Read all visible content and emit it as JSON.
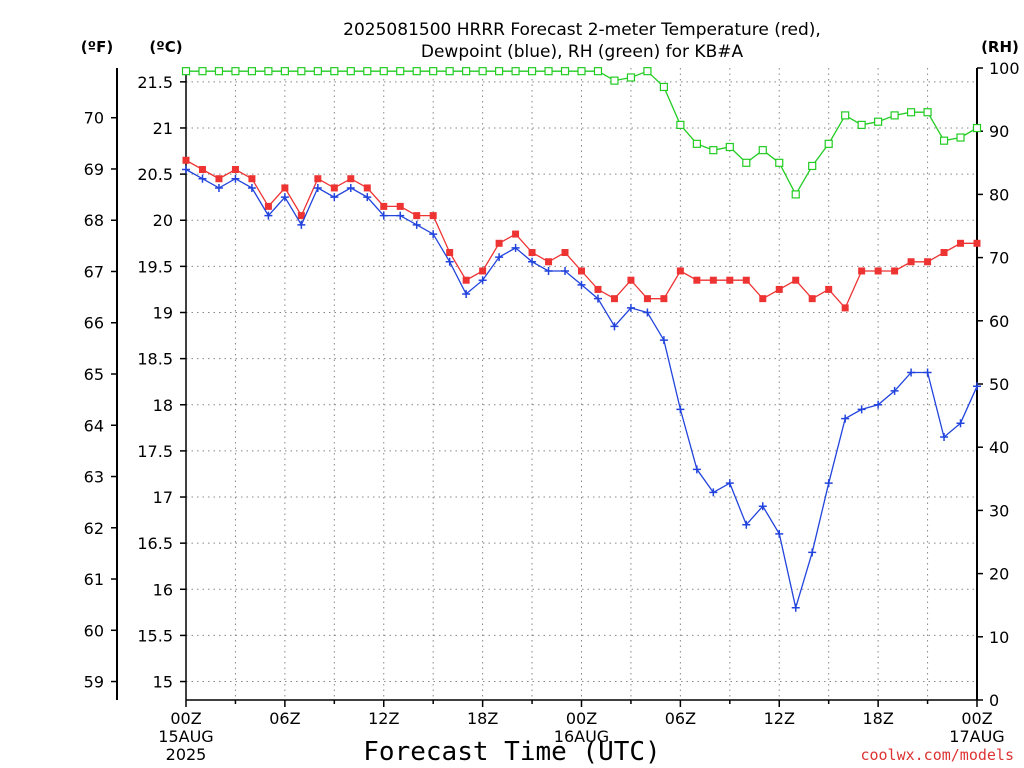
{
  "chart_data": {
    "type": "line",
    "title_line1": "2025081500 HRRR Forecast 2-meter Temperature (red),",
    "title_line2": "Dewpoint (blue), RH (green) for KB#A",
    "xlabel": "Forecast Time (UTC)",
    "credit": "coolwx.com/models",
    "unit_f": "(ºF)",
    "unit_c": "(ºC)",
    "unit_rh": "(RH)",
    "x_unit": "forecast hour from 2025-08-15 00Z",
    "xlim": [
      0,
      48
    ],
    "ylim_c": [
      14.8,
      21.65
    ],
    "ylim_rh": [
      0,
      100
    ],
    "grid": true,
    "x_ticks": [
      {
        "hour": 0,
        "label": "00Z",
        "sub1": "15AUG",
        "sub2": "2025"
      },
      {
        "hour": 6,
        "label": "06Z",
        "sub1": "",
        "sub2": ""
      },
      {
        "hour": 12,
        "label": "12Z",
        "sub1": "",
        "sub2": ""
      },
      {
        "hour": 18,
        "label": "18Z",
        "sub1": "",
        "sub2": ""
      },
      {
        "hour": 24,
        "label": "00Z",
        "sub1": "16AUG",
        "sub2": ""
      },
      {
        "hour": 30,
        "label": "06Z",
        "sub1": "",
        "sub2": ""
      },
      {
        "hour": 36,
        "label": "12Z",
        "sub1": "",
        "sub2": ""
      },
      {
        "hour": 42,
        "label": "18Z",
        "sub1": "",
        "sub2": ""
      },
      {
        "hour": 48,
        "label": "00Z",
        "sub1": "17AUG",
        "sub2": ""
      }
    ],
    "y_ticks_c": [
      "15",
      "15.5",
      "16",
      "16.5",
      "17",
      "17.5",
      "18",
      "18.5",
      "19",
      "19.5",
      "20",
      "20.5",
      "21",
      "21.5"
    ],
    "y_ticks_f": [
      "59",
      "60",
      "61",
      "62",
      "63",
      "64",
      "65",
      "66",
      "67",
      "68",
      "69",
      "70"
    ],
    "y_ticks_rh": [
      "0",
      "10",
      "20",
      "30",
      "40",
      "50",
      "60",
      "70",
      "80",
      "90",
      "100"
    ],
    "colors": {
      "temperature": "#ee3333",
      "dewpoint": "#2244dd",
      "rh": "#22cc22",
      "grid": "#888888"
    },
    "series": [
      {
        "key": "temperature",
        "axis": "c",
        "marker": "filled-square",
        "values": [
          20.65,
          20.55,
          20.45,
          20.55,
          20.45,
          20.15,
          20.35,
          20.05,
          20.45,
          20.35,
          20.45,
          20.35,
          20.15,
          20.15,
          20.05,
          20.05,
          19.65,
          19.35,
          19.45,
          19.75,
          19.85,
          19.65,
          19.55,
          19.65,
          19.45,
          19.25,
          19.15,
          19.35,
          19.15,
          19.15,
          19.45,
          19.35,
          19.35,
          19.35,
          19.35,
          19.15,
          19.25,
          19.35,
          19.15,
          19.25,
          19.05,
          19.45,
          19.45,
          19.45,
          19.55,
          19.55,
          19.65,
          19.75,
          19.75
        ]
      },
      {
        "key": "dewpoint",
        "axis": "c",
        "marker": "plus",
        "values": [
          20.55,
          20.45,
          20.35,
          20.45,
          20.35,
          20.05,
          20.25,
          19.95,
          20.35,
          20.25,
          20.35,
          20.25,
          20.05,
          20.05,
          19.95,
          19.85,
          19.55,
          19.2,
          19.35,
          19.6,
          19.7,
          19.55,
          19.45,
          19.45,
          19.3,
          19.15,
          18.85,
          19.05,
          19.0,
          18.7,
          17.95,
          17.3,
          17.05,
          17.15,
          16.7,
          16.9,
          16.6,
          15.8,
          16.4,
          17.15,
          17.85,
          17.95,
          18.0,
          18.15,
          18.35,
          18.35,
          17.65,
          17.8,
          18.2
        ]
      },
      {
        "key": "rh",
        "axis": "rh",
        "marker": "open-square",
        "values": [
          99.5,
          99.5,
          99.5,
          99.5,
          99.5,
          99.5,
          99.5,
          99.5,
          99.5,
          99.5,
          99.5,
          99.5,
          99.5,
          99.5,
          99.5,
          99.5,
          99.5,
          99.5,
          99.5,
          99.5,
          99.5,
          99.5,
          99.5,
          99.5,
          99.5,
          99.5,
          98,
          98.5,
          99.5,
          97,
          91,
          88,
          87,
          87.5,
          85,
          87,
          85,
          80,
          84.5,
          88,
          92.5,
          91,
          91.5,
          92.5,
          93,
          93,
          88.5,
          89,
          90.5
        ]
      }
    ]
  }
}
